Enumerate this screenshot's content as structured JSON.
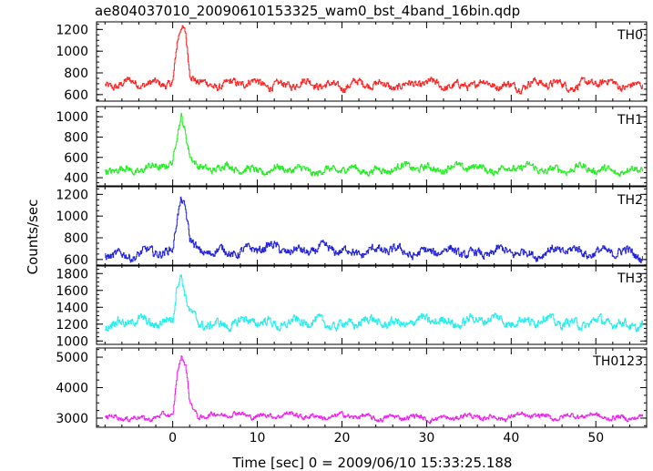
{
  "chart_data": {
    "type": "line",
    "title": "ae804037010_20090610153325_wam0_bst_4band_16bin.qdp",
    "xlabel": "Time [sec] 0 = 2009/06/10 15:33:25.188",
    "ylabel": "Counts/sec",
    "xlim": [
      -9,
      56
    ],
    "x_ticks": [
      0,
      10,
      20,
      30,
      40,
      50
    ],
    "grid": false,
    "panels": [
      {
        "name": "TH0",
        "color": "#ff2020",
        "ylim": [
          540,
          1270
        ],
        "y_ticks": [
          600,
          800,
          1000,
          1200
        ],
        "baseline": 690,
        "noise": 40,
        "peak_time": 1.0,
        "peak_value": 1200,
        "series": [
          {
            "x": [
              -8,
              -4,
              0,
              0.5,
              1,
              1.5,
              2,
              3,
              10,
              20,
              30,
              40,
              50,
              55
            ],
            "y": [
              680,
              700,
              720,
              1050,
              1200,
              1150,
              800,
              700,
              700,
              690,
              690,
              690,
              700,
              690
            ]
          }
        ]
      },
      {
        "name": "TH1",
        "color": "#20ee20",
        "ylim": [
          320,
          1100
        ],
        "y_ticks": [
          400,
          600,
          800,
          1000
        ],
        "baseline": 480,
        "noise": 40,
        "peak_time": 1.2,
        "peak_value": 1000,
        "series": [
          {
            "x": [
              -8,
              -4,
              0,
              0.5,
              1,
              1.5,
              2,
              3,
              10,
              20,
              30,
              40,
              50,
              55
            ],
            "y": [
              460,
              490,
              520,
              800,
              1000,
              850,
              650,
              500,
              480,
              470,
              500,
              490,
              480,
              470
            ]
          }
        ]
      },
      {
        "name": "TH2",
        "color": "#2020dd",
        "ylim": [
          540,
          1270
        ],
        "y_ticks": [
          600,
          800,
          1000,
          1200
        ],
        "baseline": 660,
        "noise": 45,
        "peak_time": 1.0,
        "peak_value": 1200,
        "series": [
          {
            "x": [
              -8,
              -4,
              0,
              0.5,
              1,
              1.5,
              2,
              3,
              10,
              20,
              30,
              40,
              50,
              55
            ],
            "y": [
              660,
              640,
              680,
              1000,
              1200,
              1100,
              800,
              650,
              700,
              680,
              670,
              660,
              680,
              640
            ]
          }
        ]
      },
      {
        "name": "TH3",
        "color": "#20eeee",
        "ylim": [
          960,
          1900
        ],
        "y_ticks": [
          1000,
          1200,
          1400,
          1600,
          1800
        ],
        "baseline": 1210,
        "noise": 60,
        "peak_time": 0.8,
        "peak_value": 1800,
        "series": [
          {
            "x": [
              -8,
              -4,
              0,
              0.5,
              1,
              1.5,
              2,
              3,
              10,
              20,
              30,
              40,
              50,
              55
            ],
            "y": [
              1200,
              1220,
              1250,
              1700,
              1800,
              1500,
              1300,
              1200,
              1220,
              1210,
              1230,
              1250,
              1210,
              1200
            ]
          }
        ]
      },
      {
        "name": "TH0123",
        "color": "#ee20ee",
        "ylim": [
          2700,
          5300
        ],
        "y_ticks": [
          3000,
          4000,
          5000
        ],
        "baseline": 3040,
        "noise": 90,
        "peak_time": 1.0,
        "peak_value": 5000,
        "series": [
          {
            "x": [
              -8,
              -4,
              0,
              0.5,
              1,
              1.5,
              2,
              3,
              10,
              20,
              30,
              40,
              50,
              55
            ],
            "y": [
              2980,
              3020,
              3050,
              4500,
              5000,
              4700,
              3500,
              3100,
              3100,
              3050,
              3000,
              3050,
              3060,
              3000
            ]
          }
        ]
      }
    ]
  }
}
